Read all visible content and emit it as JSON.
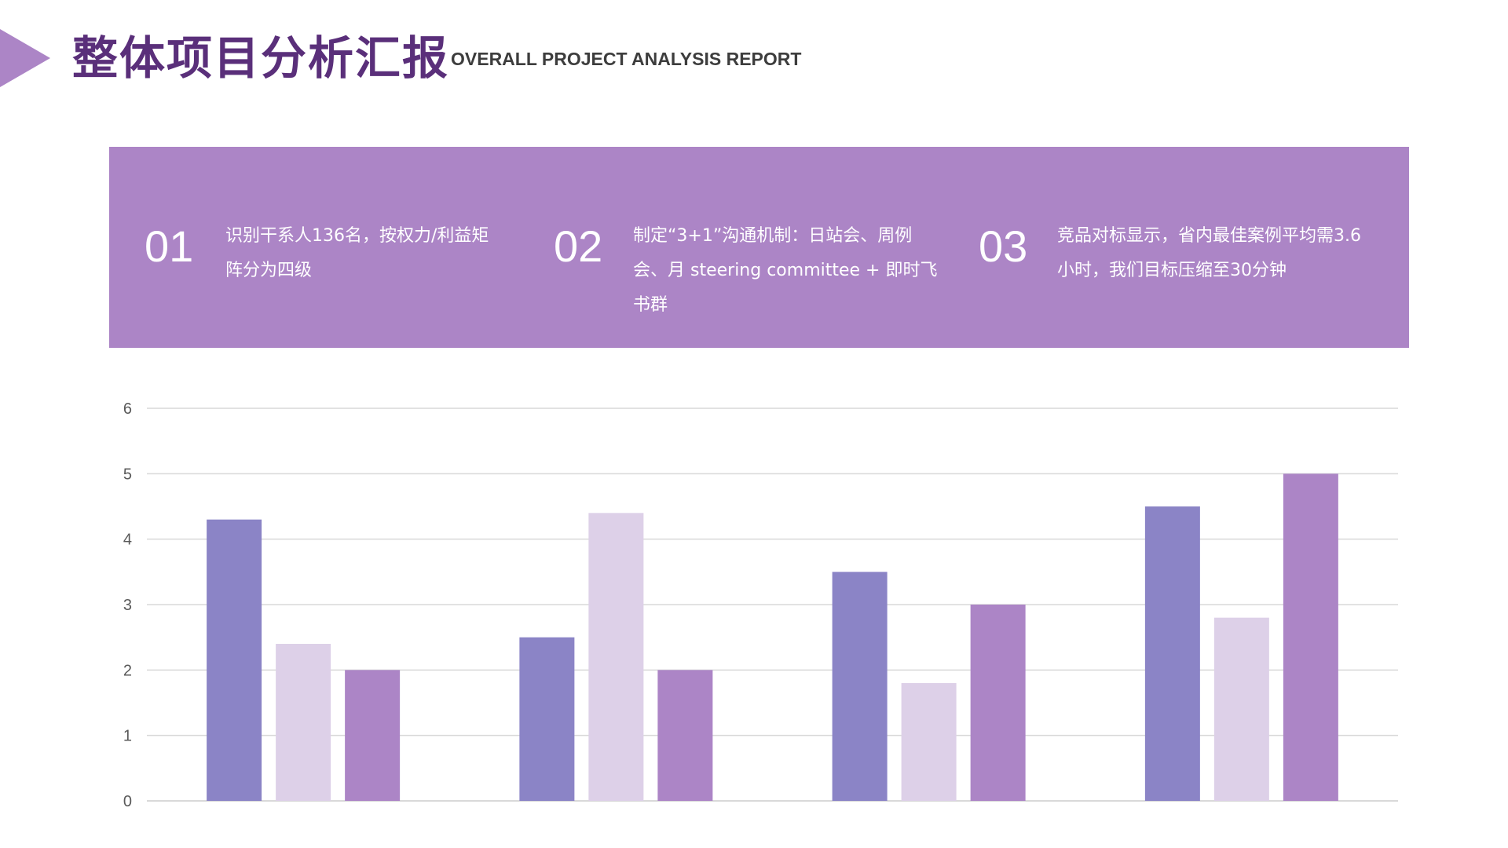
{
  "header": {
    "title": "整体项目分析汇报",
    "subtitle": "OVERALL PROJECT ANALYSIS REPORT"
  },
  "banner": {
    "points": [
      {
        "num": "01",
        "text": "识别干系人136名，按权力/利益矩阵分为四级"
      },
      {
        "num": "02",
        "text": "制定“3+1”沟通机制：日站会、周例会、月 steering committee + 即时飞书群"
      },
      {
        "num": "03",
        "text": "竞品对标显示，省内最佳案例平均需3.6小时，我们目标压缩至30分钟"
      }
    ]
  },
  "colors": {
    "accent": "#ac85c6",
    "title": "#5a2f7a",
    "series": [
      "#8b84c6",
      "#ddd0e8",
      "#ac85c6"
    ],
    "grid": "#d9d9d9"
  },
  "chart_data": {
    "type": "bar",
    "categories": [
      "",
      "",
      "",
      ""
    ],
    "series": [
      {
        "values": [
          4.3,
          2.5,
          3.5,
          4.5
        ]
      },
      {
        "values": [
          2.4,
          4.4,
          1.8,
          2.8
        ]
      },
      {
        "values": [
          2.0,
          2.0,
          3.0,
          5.0
        ]
      }
    ],
    "ylim": [
      0,
      6
    ],
    "yticks": [
      0,
      1,
      2,
      3,
      4,
      5,
      6
    ],
    "grid": true,
    "legend": "none",
    "title": "",
    "xlabel": "",
    "ylabel": ""
  }
}
